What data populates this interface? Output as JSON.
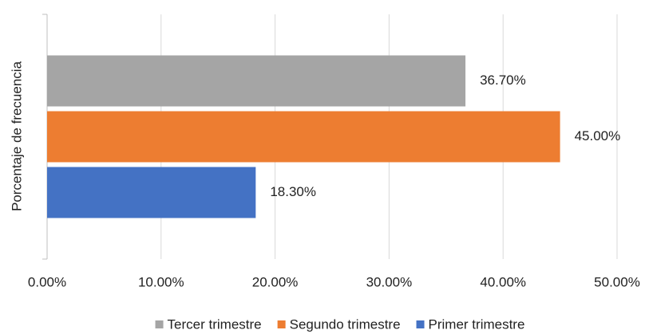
{
  "chart_data": {
    "type": "bar",
    "orientation": "horizontal",
    "ylabel": "Porcentaje de frecuencia",
    "categories": [
      null
    ],
    "series": [
      {
        "name": "Tercer trimestre",
        "color": "#a5a5a5",
        "values": [
          36.7
        ],
        "value_labels": [
          "36.70%"
        ]
      },
      {
        "name": "Segundo trimestre",
        "color": "#ed7d31",
        "values": [
          45
        ],
        "value_labels": [
          "45.00%"
        ]
      },
      {
        "name": "Primer trimestre",
        "color": "#4472c4",
        "values": [
          18.3
        ],
        "value_labels": [
          "18.30%"
        ]
      }
    ],
    "xlim": [
      0,
      50
    ],
    "xticks": [
      {
        "value": 0,
        "label": "0.00%"
      },
      {
        "value": 10,
        "label": "10.00%"
      },
      {
        "value": 20,
        "label": "20.00%"
      },
      {
        "value": 30,
        "label": "30.00%"
      },
      {
        "value": 40,
        "label": "40.00%"
      },
      {
        "value": 50,
        "label": "50.00%"
      }
    ],
    "grid": true,
    "legend": "bottom"
  }
}
